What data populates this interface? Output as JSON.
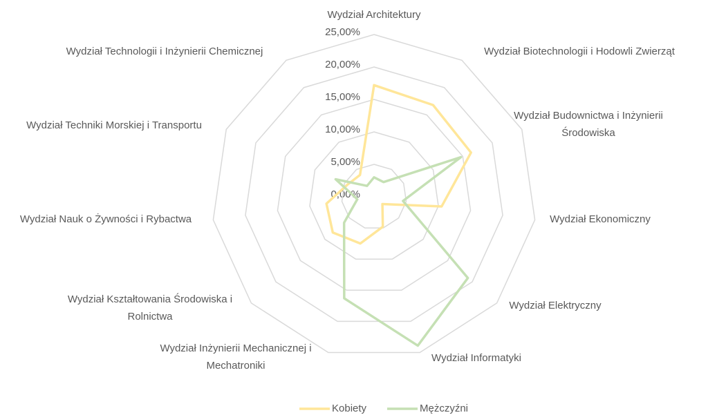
{
  "chart_data": {
    "type": "radar",
    "categories": [
      "Wydział Architektury",
      "Wydział Biotechnologii i Hodowli Zwierząt",
      "Wydział Budownictwa i Inżynierii Środowiska",
      "Wydział Ekonomiczny",
      "Wydział Elektryczny",
      "Wydział Informatyki",
      "Wydział Inżynierii Mechanicznej i Mechatroniki",
      "Wydział Kształtowania Środowiska i Rolnictwa",
      "Wydział Nauk o Żywności i Rybactwa",
      "Wydział Techniki Morskiej i Transportu",
      "Wydział Technologii i Inżynierii Chemicznej"
    ],
    "series": [
      {
        "name": "Kobiety",
        "color": "#ffe699",
        "values": [
          17.2,
          16.8,
          16.4,
          10.5,
          1.7,
          4.8,
          7.5,
          8.4,
          7.4,
          4.5,
          4.0
        ]
      },
      {
        "name": "Mężczyźni",
        "color": "#c5e0b4",
        "values": [
          3.0,
          2.7,
          14.7,
          4.5,
          19.1,
          23.9,
          16.3,
          6.1,
          2.6,
          6.5,
          2.0
        ]
      }
    ],
    "ylim": [
      0,
      25
    ],
    "yticks": [
      {
        "value": 0,
        "label": "0,00%"
      },
      {
        "value": 5,
        "label": "5,00%"
      },
      {
        "value": 10,
        "label": "10,00%"
      },
      {
        "value": 15,
        "label": "15,00%"
      },
      {
        "value": 20,
        "label": "20,00%"
      },
      {
        "value": 25,
        "label": "25,00%"
      }
    ],
    "grid": true,
    "legend": "bottom"
  }
}
